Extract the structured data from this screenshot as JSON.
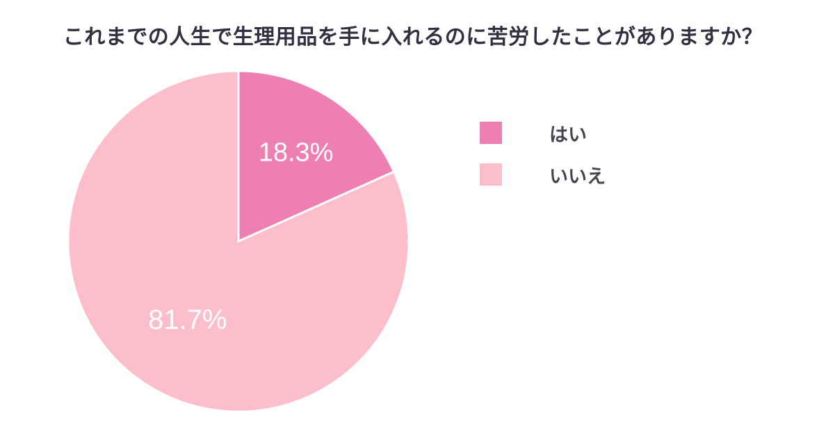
{
  "chart_data": {
    "type": "pie",
    "title": "これまでの人生で生理用品を手に入れるのに苦労したことがありますか？",
    "slices": [
      {
        "label": "はい",
        "value": 18.3,
        "display": "18.3%",
        "color": "#ee7fb2"
      },
      {
        "label": "いいえ",
        "value": 81.7,
        "display": "81.7%",
        "color": "#fdbecb"
      }
    ],
    "legend_position": "right",
    "value_label_color": "#ffffff",
    "divider_color": "#ffffff"
  }
}
